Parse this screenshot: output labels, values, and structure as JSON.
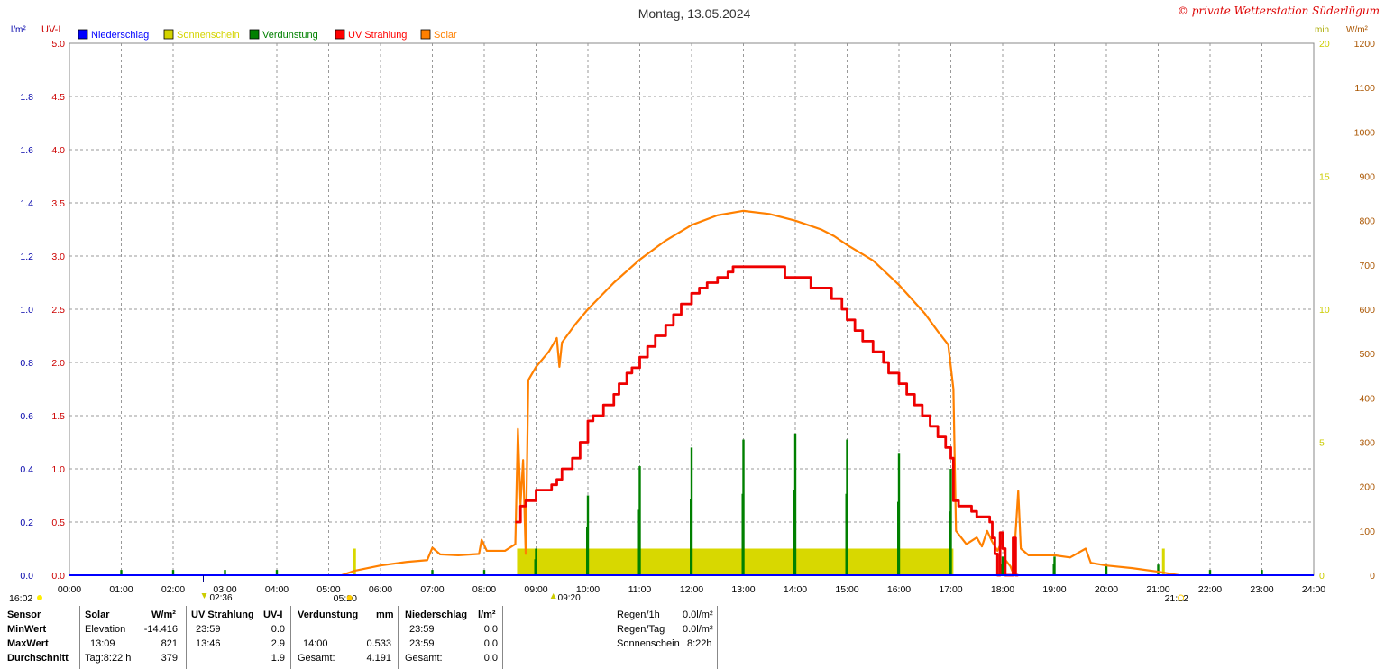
{
  "header": {
    "title": "Montag, 13.05.2024",
    "copyright": "© private Wetterstation Süderlügum"
  },
  "axis_units": {
    "left1": "l/m²",
    "left2": "UV-I",
    "right1": "min",
    "right2": "W/m²"
  },
  "legend": [
    {
      "label": "Niederschlag",
      "color": "#0000ff"
    },
    {
      "label": "Sonnenschein",
      "color": "#d4d400"
    },
    {
      "label": "Verdunstung",
      "color": "#008000"
    },
    {
      "label": "UV Strahlung",
      "color": "#ff0000"
    },
    {
      "label": "Solar",
      "color": "#ff8000"
    }
  ],
  "colors": {
    "rain": "#0000ff",
    "sunshine": "#d8d800",
    "evaporation": "#008000",
    "uv": "#ee0000",
    "solar": "#ff8000",
    "axis_rain": "#0000aa",
    "axis_uv": "#cc0000",
    "axis_min": "#cccc00",
    "axis_solar": "#aa5500"
  },
  "sun_events": {
    "left_time": "16:02",
    "sunrise": "05:20",
    "sunset": "21:22",
    "moon_down": "02:36",
    "moon_up": "09:20"
  },
  "chart_data": {
    "type": "line",
    "title": "Montag, 13.05.2024",
    "x_unit": "hours",
    "xlim": [
      0,
      24
    ],
    "x_ticks": [
      "00:00",
      "01:00",
      "02:00",
      "03:00",
      "04:00",
      "05:00",
      "06:00",
      "07:00",
      "08:00",
      "09:00",
      "10:00",
      "11:00",
      "12:00",
      "13:00",
      "14:00",
      "15:00",
      "16:00",
      "17:00",
      "18:00",
      "19:00",
      "20:00",
      "21:00",
      "22:00",
      "23:00",
      "24:00"
    ],
    "axes": {
      "rain": {
        "label": "l/m²",
        "ylim": [
          0,
          2
        ],
        "ticks": [
          "0.0",
          "0.2",
          "0.4",
          "0.6",
          "0.8",
          "1.0",
          "1.2",
          "1.4",
          "1.6",
          "1.8"
        ]
      },
      "uv": {
        "label": "UV-I",
        "ylim": [
          0,
          5
        ],
        "ticks": [
          "0.0",
          "0.5",
          "1.0",
          "1.5",
          "2.0",
          "2.5",
          "3.0",
          "3.5",
          "4.0",
          "4.5",
          "5.0"
        ]
      },
      "sunshine_min": {
        "label": "min",
        "ylim": [
          0,
          20
        ],
        "ticks": [
          "0",
          "5",
          "10",
          "15",
          "20"
        ]
      },
      "solar": {
        "label": "W/m²",
        "ylim": [
          0,
          1200
        ],
        "ticks": [
          "0",
          "100",
          "200",
          "300",
          "400",
          "500",
          "600",
          "700",
          "800",
          "900",
          "1000",
          "1100",
          "1200"
        ]
      }
    },
    "grid": true,
    "series": [
      {
        "name": "Solar",
        "axis": "solar",
        "points": [
          [
            5.25,
            0
          ],
          [
            5.5,
            10
          ],
          [
            6.0,
            22
          ],
          [
            6.5,
            30
          ],
          [
            6.9,
            34
          ],
          [
            7.0,
            62
          ],
          [
            7.15,
            47
          ],
          [
            7.5,
            45
          ],
          [
            7.9,
            48
          ],
          [
            7.95,
            80
          ],
          [
            8.05,
            55
          ],
          [
            8.4,
            55
          ],
          [
            8.6,
            70
          ],
          [
            8.65,
            330
          ],
          [
            8.7,
            160
          ],
          [
            8.75,
            260
          ],
          [
            8.8,
            48
          ],
          [
            8.85,
            440
          ],
          [
            9.0,
            470
          ],
          [
            9.25,
            505
          ],
          [
            9.4,
            535
          ],
          [
            9.45,
            470
          ],
          [
            9.5,
            525
          ],
          [
            9.75,
            565
          ],
          [
            10.0,
            600
          ],
          [
            10.5,
            660
          ],
          [
            11.0,
            712
          ],
          [
            11.5,
            755
          ],
          [
            12.0,
            790
          ],
          [
            12.5,
            812
          ],
          [
            13.0,
            822
          ],
          [
            13.5,
            815
          ],
          [
            14.0,
            800
          ],
          [
            14.5,
            780
          ],
          [
            14.75,
            765
          ],
          [
            15.0,
            745
          ],
          [
            15.5,
            710
          ],
          [
            16.0,
            655
          ],
          [
            16.5,
            590
          ],
          [
            16.75,
            550
          ],
          [
            16.95,
            520
          ],
          [
            17.0,
            470
          ],
          [
            17.05,
            420
          ],
          [
            17.1,
            100
          ],
          [
            17.3,
            70
          ],
          [
            17.5,
            85
          ],
          [
            17.6,
            65
          ],
          [
            17.7,
            100
          ],
          [
            17.8,
            75
          ],
          [
            17.9,
            55
          ],
          [
            18.0,
            80
          ],
          [
            18.05,
            35
          ],
          [
            18.15,
            20
          ],
          [
            18.2,
            5
          ],
          [
            18.3,
            190
          ],
          [
            18.35,
            60
          ],
          [
            18.5,
            45
          ],
          [
            19.0,
            45
          ],
          [
            19.3,
            40
          ],
          [
            19.6,
            60
          ],
          [
            19.7,
            28
          ],
          [
            20.0,
            22
          ],
          [
            20.5,
            16
          ],
          [
            21.0,
            8
          ],
          [
            21.4,
            0
          ]
        ]
      },
      {
        "name": "UV Strahlung",
        "axis": "uv",
        "points": [
          [
            8.6,
            0.5
          ],
          [
            8.7,
            0.65
          ],
          [
            8.8,
            0.7
          ],
          [
            9.0,
            0.8
          ],
          [
            9.3,
            0.85
          ],
          [
            9.4,
            0.9
          ],
          [
            9.5,
            1.0
          ],
          [
            9.7,
            1.1
          ],
          [
            9.85,
            1.25
          ],
          [
            10.0,
            1.45
          ],
          [
            10.1,
            1.5
          ],
          [
            10.3,
            1.6
          ],
          [
            10.5,
            1.7
          ],
          [
            10.6,
            1.8
          ],
          [
            10.75,
            1.9
          ],
          [
            10.85,
            1.95
          ],
          [
            11.0,
            2.05
          ],
          [
            11.15,
            2.15
          ],
          [
            11.3,
            2.25
          ],
          [
            11.5,
            2.35
          ],
          [
            11.65,
            2.45
          ],
          [
            11.8,
            2.55
          ],
          [
            12.0,
            2.65
          ],
          [
            12.15,
            2.7
          ],
          [
            12.3,
            2.75
          ],
          [
            12.5,
            2.8
          ],
          [
            12.7,
            2.85
          ],
          [
            12.8,
            2.9
          ],
          [
            13.0,
            2.9
          ],
          [
            13.4,
            2.9
          ],
          [
            13.75,
            2.9
          ],
          [
            13.8,
            2.8
          ],
          [
            14.0,
            2.8
          ],
          [
            14.2,
            2.8
          ],
          [
            14.3,
            2.7
          ],
          [
            14.6,
            2.7
          ],
          [
            14.7,
            2.6
          ],
          [
            14.9,
            2.5
          ],
          [
            15.0,
            2.4
          ],
          [
            15.15,
            2.3
          ],
          [
            15.3,
            2.2
          ],
          [
            15.5,
            2.1
          ],
          [
            15.7,
            2.0
          ],
          [
            15.8,
            1.9
          ],
          [
            16.0,
            1.8
          ],
          [
            16.15,
            1.7
          ],
          [
            16.3,
            1.6
          ],
          [
            16.45,
            1.5
          ],
          [
            16.6,
            1.4
          ],
          [
            16.75,
            1.3
          ],
          [
            16.9,
            1.2
          ],
          [
            17.0,
            1.1
          ],
          [
            17.05,
            0.7
          ],
          [
            17.15,
            0.65
          ],
          [
            17.4,
            0.6
          ],
          [
            17.5,
            0.55
          ],
          [
            17.75,
            0.5
          ],
          [
            17.8,
            0.35
          ],
          [
            17.85,
            0.2
          ],
          [
            17.9,
            0.0
          ],
          [
            17.95,
            0.4
          ],
          [
            18.0,
            0.25
          ],
          [
            18.05,
            0.0
          ],
          [
            18.2,
            0.35
          ],
          [
            18.25,
            0.0
          ],
          [
            18.3,
            0.0
          ]
        ]
      },
      {
        "name": "Sonnenschein",
        "axis": "sunshine_min",
        "type": "bar",
        "points": [
          [
            5.5,
            1
          ],
          [
            8.66,
            1
          ],
          [
            21.1,
            1
          ]
        ],
        "block": [
          8.66,
          17.05,
          1
        ]
      },
      {
        "name": "Verdunstung",
        "axis": "rain",
        "type": "spike",
        "points": [
          [
            1.0,
            0.02
          ],
          [
            2.0,
            0.02
          ],
          [
            3.0,
            0.02
          ],
          [
            4.0,
            0.02
          ],
          [
            7.0,
            0.02
          ],
          [
            8.0,
            0.02
          ],
          [
            9.0,
            0.1
          ],
          [
            10.0,
            0.3
          ],
          [
            11.0,
            0.41
          ],
          [
            12.0,
            0.48
          ],
          [
            13.0,
            0.51
          ],
          [
            14.0,
            0.533
          ],
          [
            15.0,
            0.51
          ],
          [
            16.0,
            0.46
          ],
          [
            17.0,
            0.4
          ],
          [
            18.0,
            0.07
          ],
          [
            19.0,
            0.07
          ],
          [
            20.0,
            0.04
          ],
          [
            21.0,
            0.04
          ],
          [
            22.0,
            0.02
          ],
          [
            23.0,
            0.02
          ]
        ]
      },
      {
        "name": "Niederschlag",
        "axis": "rain",
        "type": "bar",
        "points": []
      }
    ]
  },
  "footer": {
    "headers": {
      "sensor": "Sensor",
      "solar": "Solar",
      "solar_unit": "W/m²",
      "uv": "UV Strahlung",
      "uv_unit": "UV-I",
      "evap": "Verdunstung",
      "evap_unit": "mm",
      "rain": "Niederschlag",
      "rain_unit": "l/m²"
    },
    "rows": [
      {
        "label": "MinWert",
        "solar_time": "Elevation",
        "solar_val": "-14.416",
        "uv_time": "23:59",
        "uv_val": "0.0",
        "evap_time": "",
        "evap_val": "",
        "rain_time": "23:59",
        "rain_val": "0.0"
      },
      {
        "label": "MaxWert",
        "solar_time": "13:09",
        "solar_val": "821",
        "uv_time": "13:46",
        "uv_val": "2.9",
        "evap_time": "14:00",
        "evap_val": "0.533",
        "rain_time": "23:59",
        "rain_val": "0.0"
      },
      {
        "label": "Durchschnitt",
        "solar_time": "Tag:8:22 h",
        "solar_val": "379",
        "uv_time": "",
        "uv_val": "1.9",
        "evap_time": "Gesamt:",
        "evap_val": "4.191",
        "rain_time": "Gesamt:",
        "rain_val": "0.0"
      }
    ],
    "stats": [
      {
        "label": "Regen/1h",
        "value": "0.0l/m²"
      },
      {
        "label": "Regen/Tag",
        "value": "0.0l/m²"
      },
      {
        "label": "Sonnenschein",
        "value": "8:22h"
      }
    ]
  }
}
